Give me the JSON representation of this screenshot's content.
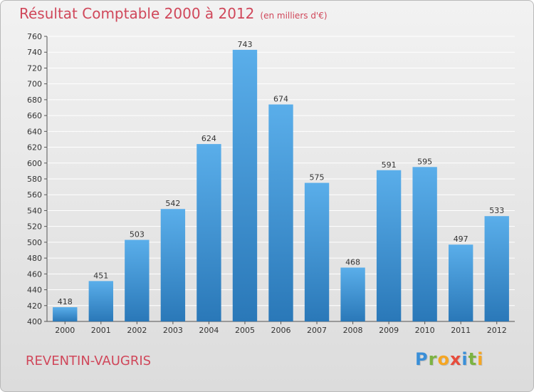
{
  "header": {
    "title": "Résultat Comptable 2000 à 2012",
    "subtitle": "(en milliers d'€)"
  },
  "footer": {
    "location": "REVENTIN-VAUGRIS",
    "logo": "Proxiti"
  },
  "colors": {
    "title": "#d0475a",
    "bar_top": "#5aaeea",
    "bar_bottom": "#2a78b8",
    "grid": "#ffffff"
  },
  "chart_data": {
    "type": "bar",
    "title": "Résultat Comptable 2000 à 2012",
    "subtitle": "(en milliers d'€)",
    "xlabel": "",
    "ylabel": "",
    "categories": [
      "2000",
      "2001",
      "2002",
      "2003",
      "2004",
      "2005",
      "2006",
      "2007",
      "2008",
      "2009",
      "2010",
      "2011",
      "2012"
    ],
    "values": [
      418,
      451,
      503,
      542,
      624,
      743,
      674,
      575,
      468,
      591,
      595,
      497,
      533
    ],
    "ylim": [
      400,
      760
    ],
    "yticks": [
      400,
      420,
      440,
      460,
      480,
      500,
      520,
      540,
      560,
      580,
      600,
      620,
      640,
      660,
      680,
      700,
      720,
      740,
      760
    ],
    "grid": true,
    "legend": "none"
  }
}
